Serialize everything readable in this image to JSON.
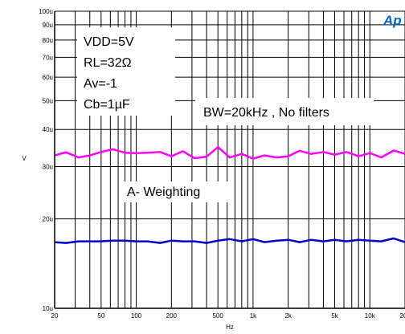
{
  "chart_data": {
    "type": "line",
    "title": "",
    "xlabel": "Hz",
    "ylabel": "V",
    "xscale": "log",
    "yscale": "log",
    "xlim": [
      20,
      20000
    ],
    "ylim": [
      1e-05,
      0.0001
    ],
    "grid": true,
    "x_ticks": [
      {
        "v": 20,
        "label": "20"
      },
      {
        "v": 50,
        "label": "50"
      },
      {
        "v": 100,
        "label": "100"
      },
      {
        "v": 200,
        "label": "200"
      },
      {
        "v": 500,
        "label": "500"
      },
      {
        "v": 1000,
        "label": "1k"
      },
      {
        "v": 2000,
        "label": "2k"
      },
      {
        "v": 5000,
        "label": "5k"
      },
      {
        "v": 10000,
        "label": "10k"
      },
      {
        "v": 20000,
        "label": "20k"
      }
    ],
    "y_ticks": [
      {
        "v": 1e-05,
        "label": "10u"
      },
      {
        "v": 2e-05,
        "label": "20u"
      },
      {
        "v": 3e-05,
        "label": "30u"
      },
      {
        "v": 4e-05,
        "label": "40u"
      },
      {
        "v": 5e-05,
        "label": "50u"
      },
      {
        "v": 6e-05,
        "label": "60u"
      },
      {
        "v": 7e-05,
        "label": "70u"
      },
      {
        "v": 8e-05,
        "label": "80u"
      },
      {
        "v": 9e-05,
        "label": "90u"
      },
      {
        "v": 0.0001,
        "label": "100u"
      }
    ],
    "series": [
      {
        "name": "BW=20kHz , No filters",
        "color": "#ff00ff",
        "x": [
          20,
          25,
          32,
          40,
          50,
          63,
          80,
          100,
          125,
          160,
          200,
          250,
          315,
          400,
          500,
          630,
          800,
          1000,
          1250,
          1600,
          2000,
          2500,
          3150,
          4000,
          5000,
          6300,
          8000,
          10000,
          12500,
          16000,
          20000
        ],
        "y": [
          3.27e-05,
          3.35e-05,
          3.22e-05,
          3.27e-05,
          3.36e-05,
          3.43e-05,
          3.34e-05,
          3.33e-05,
          3.34e-05,
          3.36e-05,
          3.25e-05,
          3.38e-05,
          3.2e-05,
          3.24e-05,
          3.49e-05,
          3.22e-05,
          3.31e-05,
          3.19e-05,
          3.27e-05,
          3.22e-05,
          3.25e-05,
          3.39e-05,
          3.31e-05,
          3.36e-05,
          3.29e-05,
          3.36e-05,
          3.25e-05,
          3.33e-05,
          3.22e-05,
          3.4e-05,
          3.31e-05
        ]
      },
      {
        "name": "A- Weighting",
        "color": "#0000cc",
        "x": [
          20,
          25,
          32,
          40,
          50,
          63,
          80,
          100,
          125,
          160,
          200,
          250,
          315,
          400,
          500,
          630,
          800,
          1000,
          1250,
          1600,
          2000,
          2500,
          3150,
          4000,
          5000,
          6300,
          8000,
          10000,
          12500,
          16000,
          20000
        ],
        "y": [
          1.67e-05,
          1.66e-05,
          1.68e-05,
          1.68e-05,
          1.68e-05,
          1.69e-05,
          1.69e-05,
          1.68e-05,
          1.68e-05,
          1.66e-05,
          1.69e-05,
          1.68e-05,
          1.68e-05,
          1.66e-05,
          1.69e-05,
          1.71e-05,
          1.68e-05,
          1.71e-05,
          1.67e-05,
          1.69e-05,
          1.7e-05,
          1.67e-05,
          1.7e-05,
          1.68e-05,
          1.7e-05,
          1.68e-05,
          1.7e-05,
          1.69e-05,
          1.68e-05,
          1.72e-05,
          1.67e-05
        ]
      }
    ]
  },
  "annotations": {
    "conditions": [
      "VDD=5V",
      "RL=32Ω",
      "Av=-1",
      "Cb=1µF"
    ],
    "bw_label": "BW=20kHz , No filters",
    "weighting_label": "A- Weighting"
  },
  "brand_text": "Ap",
  "brand_color": "#0066cc"
}
